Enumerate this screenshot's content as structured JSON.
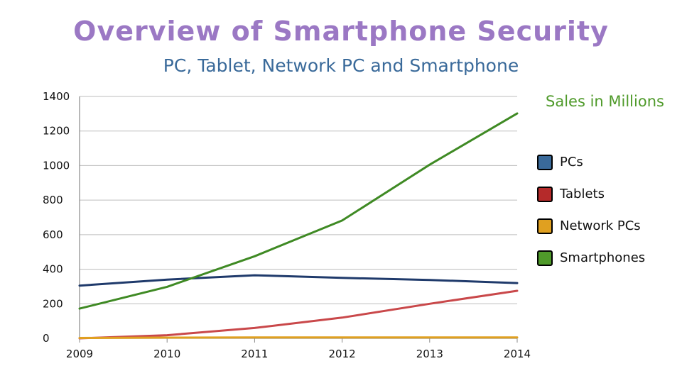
{
  "chart_data": {
    "type": "line",
    "title": "Overview of Smartphone Security",
    "subtitle": "PC, Tablet, Network PC and Smartphone",
    "legend_title": "Sales in Millions",
    "legend_position": "right",
    "categories": [
      "2009",
      "2010",
      "2011",
      "2012",
      "2013",
      "2014"
    ],
    "yticks": [
      "0",
      "200",
      "400",
      "600",
      "800",
      "1000",
      "1200",
      "1400"
    ],
    "ylim": [
      0,
      1400
    ],
    "grid": true,
    "series": [
      {
        "name": "PCs",
        "color": "#1f3a6b",
        "values": [
          305,
          340,
          365,
          350,
          338,
          320
        ]
      },
      {
        "name": "Tablets",
        "color": "#c9484a",
        "values": [
          0,
          18,
          60,
          120,
          200,
          275
        ]
      },
      {
        "name": "Network PCs",
        "color": "#e0a020",
        "values": [
          2,
          4,
          5,
          5,
          5,
          5
        ]
      },
      {
        "name": "Smartphones",
        "color": "#3f8a24",
        "values": [
          172,
          298,
          475,
          682,
          1005,
          1302
        ]
      }
    ]
  }
}
